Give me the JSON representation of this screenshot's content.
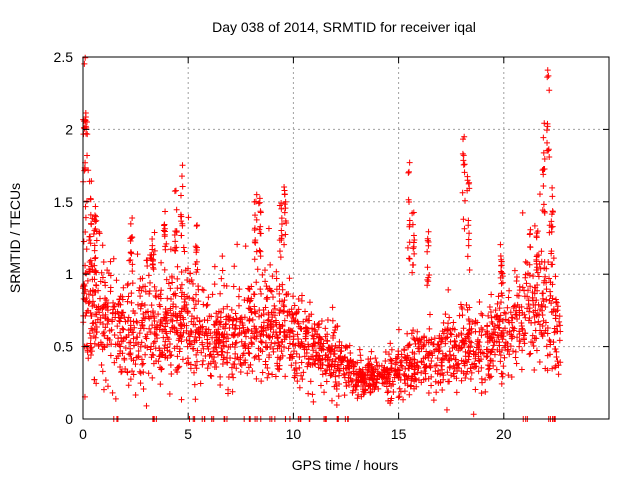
{
  "chart_data": {
    "type": "scatter",
    "title": "Day 038 of 2014, SRMTID for receiver iqal",
    "xlabel": "GPS time / hours",
    "ylabel": "SRMTID / TECUs",
    "xlim": [
      0,
      25
    ],
    "ylim": [
      0,
      2.5
    ],
    "x_ticks": [
      {
        "value": 0,
        "label": "0"
      },
      {
        "value": 5,
        "label": "5"
      },
      {
        "value": 10,
        "label": "10"
      },
      {
        "value": 15,
        "label": "15"
      },
      {
        "value": 20,
        "label": "20"
      }
    ],
    "y_ticks": [
      {
        "value": 0,
        "label": "0"
      },
      {
        "value": 0.5,
        "label": "0.5"
      },
      {
        "value": 1,
        "label": "1"
      },
      {
        "value": 1.5,
        "label": "1.5"
      },
      {
        "value": 2,
        "label": "2"
      },
      {
        "value": 2.5,
        "label": "2.5"
      }
    ],
    "grid": true,
    "marker": "plus",
    "series": [
      {
        "name": "SRMTID",
        "color": "#ff0000",
        "profile": [
          {
            "x": 0.0,
            "mean": 0.9,
            "spread": 0.55
          },
          {
            "x": 0.5,
            "mean": 0.75,
            "spread": 0.4
          },
          {
            "x": 1.0,
            "mean": 0.7,
            "spread": 0.35
          },
          {
            "x": 2.0,
            "mean": 0.55,
            "spread": 0.35
          },
          {
            "x": 3.0,
            "mean": 0.6,
            "spread": 0.35
          },
          {
            "x": 4.0,
            "mean": 0.65,
            "spread": 0.35
          },
          {
            "x": 5.0,
            "mean": 0.7,
            "spread": 0.35
          },
          {
            "x": 6.0,
            "mean": 0.55,
            "spread": 0.3
          },
          {
            "x": 7.0,
            "mean": 0.5,
            "spread": 0.3
          },
          {
            "x": 8.0,
            "mean": 0.6,
            "spread": 0.32
          },
          {
            "x": 9.0,
            "mean": 0.6,
            "spread": 0.3
          },
          {
            "x": 10.0,
            "mean": 0.55,
            "spread": 0.28
          },
          {
            "x": 11.0,
            "mean": 0.5,
            "spread": 0.25
          },
          {
            "x": 12.0,
            "mean": 0.4,
            "spread": 0.2
          },
          {
            "x": 13.0,
            "mean": 0.28,
            "spread": 0.12
          },
          {
            "x": 14.0,
            "mean": 0.28,
            "spread": 0.12
          },
          {
            "x": 15.0,
            "mean": 0.32,
            "spread": 0.15
          },
          {
            "x": 16.0,
            "mean": 0.4,
            "spread": 0.2
          },
          {
            "x": 17.0,
            "mean": 0.45,
            "spread": 0.22
          },
          {
            "x": 18.0,
            "mean": 0.45,
            "spread": 0.25
          },
          {
            "x": 19.0,
            "mean": 0.45,
            "spread": 0.25
          },
          {
            "x": 20.0,
            "mean": 0.6,
            "spread": 0.3
          },
          {
            "x": 21.0,
            "mean": 0.75,
            "spread": 0.35
          },
          {
            "x": 22.0,
            "mean": 0.8,
            "spread": 0.45
          },
          {
            "x": 22.7,
            "mean": 0.5,
            "spread": 0.3
          }
        ],
        "x_range": [
          0.0,
          22.7
        ],
        "point_count": 2200,
        "spikes": [
          {
            "x": 0.05,
            "ymin": 1.6,
            "ymax": 2.5
          },
          {
            "x": 0.15,
            "ymin": 1.4,
            "ymax": 2.2
          },
          {
            "x": 0.35,
            "ymin": 1.0,
            "ymax": 1.7
          },
          {
            "x": 0.6,
            "ymin": 1.0,
            "ymax": 1.5
          },
          {
            "x": 2.3,
            "ymin": 1.0,
            "ymax": 1.4
          },
          {
            "x": 3.3,
            "ymin": 1.0,
            "ymax": 1.25
          },
          {
            "x": 3.9,
            "ymin": 1.0,
            "ymax": 1.45
          },
          {
            "x": 4.4,
            "ymin": 1.1,
            "ymax": 1.6
          },
          {
            "x": 4.7,
            "ymin": 1.2,
            "ymax": 1.82
          },
          {
            "x": 5.4,
            "ymin": 1.0,
            "ymax": 1.35
          },
          {
            "x": 8.2,
            "ymin": 1.1,
            "ymax": 1.55
          },
          {
            "x": 8.4,
            "ymin": 1.1,
            "ymax": 1.55
          },
          {
            "x": 9.4,
            "ymin": 1.1,
            "ymax": 1.5
          },
          {
            "x": 9.6,
            "ymin": 1.2,
            "ymax": 1.66
          },
          {
            "x": 15.5,
            "ymin": 1.1,
            "ymax": 1.8
          },
          {
            "x": 15.7,
            "ymin": 1.0,
            "ymax": 1.45
          },
          {
            "x": 16.4,
            "ymin": 0.9,
            "ymax": 1.3
          },
          {
            "x": 18.1,
            "ymin": 1.2,
            "ymax": 1.95
          },
          {
            "x": 18.3,
            "ymin": 1.0,
            "ymax": 1.7
          },
          {
            "x": 19.9,
            "ymin": 0.9,
            "ymax": 1.25
          },
          {
            "x": 21.6,
            "ymin": 1.0,
            "ymax": 1.3
          },
          {
            "x": 21.9,
            "ymin": 1.4,
            "ymax": 2.05
          },
          {
            "x": 22.1,
            "ymin": 1.7,
            "ymax": 2.42
          },
          {
            "x": 22.3,
            "ymin": 1.0,
            "ymax": 1.6
          }
        ],
        "zero_hours": [
          1.6,
          3.25,
          3.45,
          5.2,
          5.7,
          6.2,
          6.8,
          7.8,
          8.3,
          9.0,
          9.7,
          10.3,
          10.9,
          11.5,
          12.0,
          12.6,
          21.0,
          22.2,
          22.5
        ]
      }
    ]
  }
}
